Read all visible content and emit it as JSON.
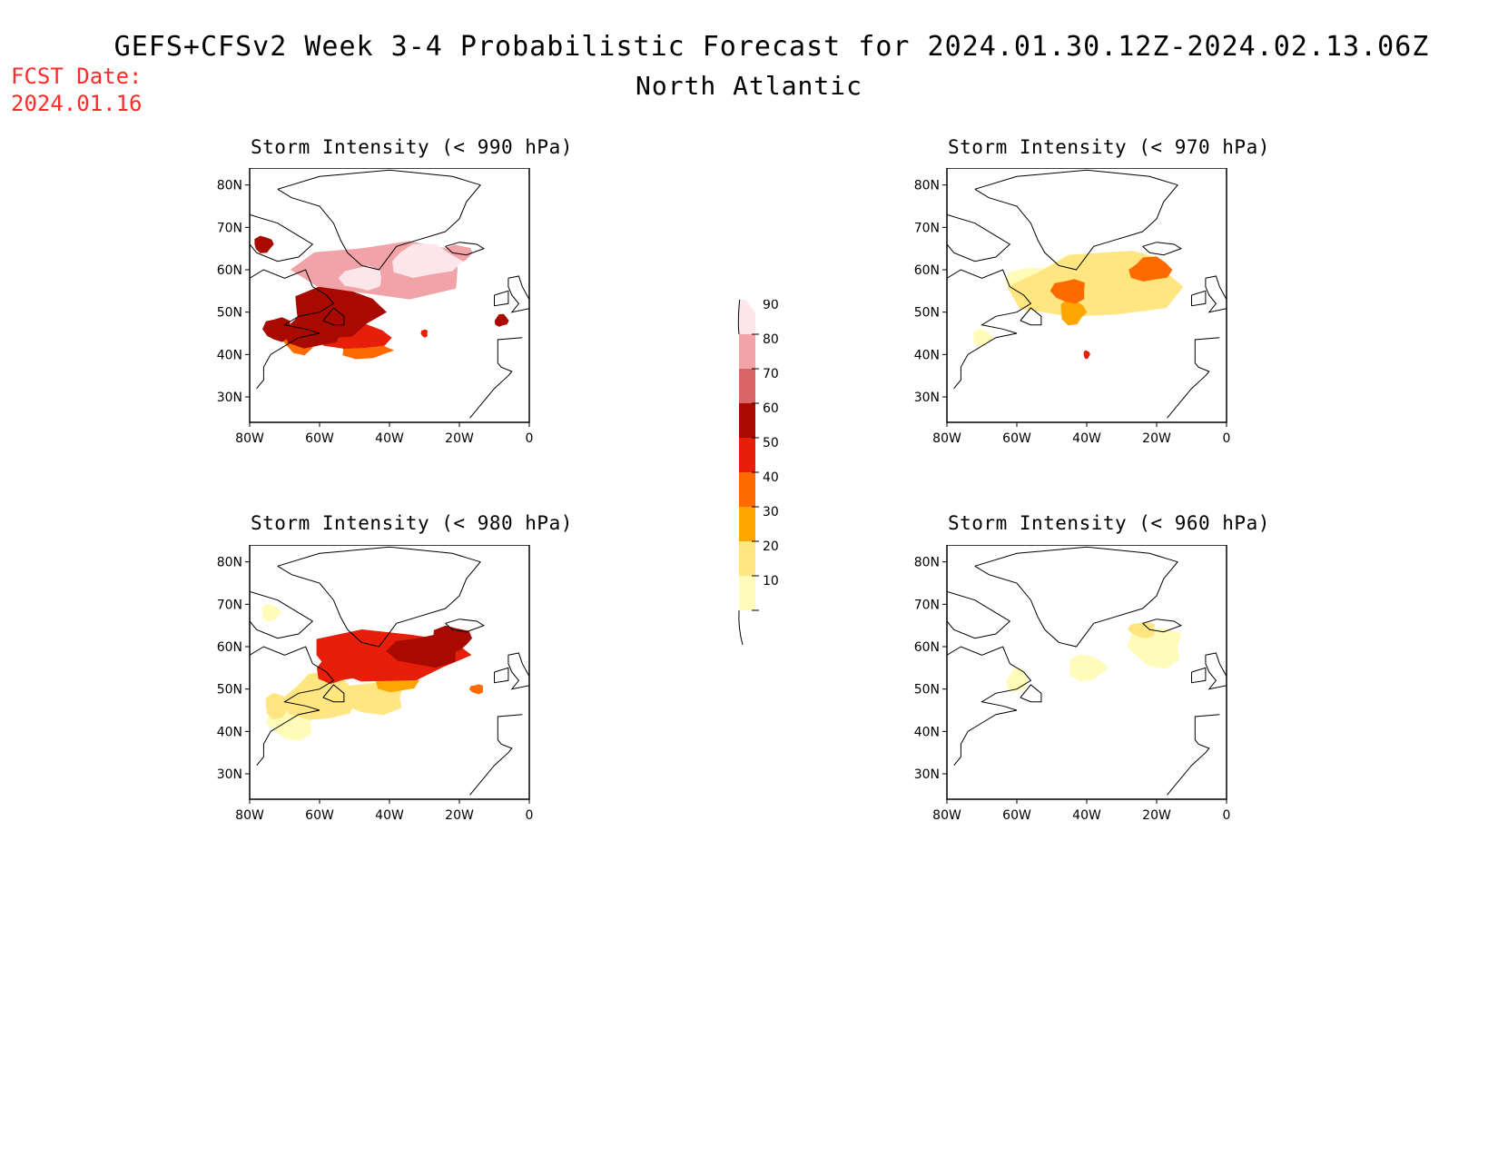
{
  "header": {
    "title": "GEFS+CFSv2 Week 3-4 Probabilistic Forecast for 2024.01.30.12Z-2024.02.13.06Z",
    "region": "North Atlantic",
    "fcst_label": "FCST Date:",
    "fcst_date": "2024.01.16"
  },
  "map_axes": {
    "lon_ticks": [
      "80W",
      "60W",
      "40W",
      "20W",
      "0"
    ],
    "lat_ticks": [
      "80N",
      "70N",
      "60N",
      "50N",
      "40N",
      "30N"
    ]
  },
  "colorbar": {
    "levels": [
      "10",
      "20",
      "30",
      "40",
      "50",
      "60",
      "70",
      "80",
      "90"
    ],
    "colors": [
      "#fffbb8",
      "#ffe680",
      "#ffa500",
      "#ff6a00",
      "#e61e0a",
      "#a80a00",
      "#d96666",
      "#f2a3a8",
      "#fde6ea"
    ]
  },
  "panels": [
    {
      "id": "p990",
      "title": "Storm Intensity (< 990 hPa)",
      "intensity": "high"
    },
    {
      "id": "p980",
      "title": "Storm Intensity (< 980 hPa)",
      "intensity": "medhigh"
    },
    {
      "id": "p970",
      "title": "Storm Intensity (< 970 hPa)",
      "intensity": "medium"
    },
    {
      "id": "p960",
      "title": "Storm Intensity (< 960 hPa)",
      "intensity": "low"
    }
  ]
}
